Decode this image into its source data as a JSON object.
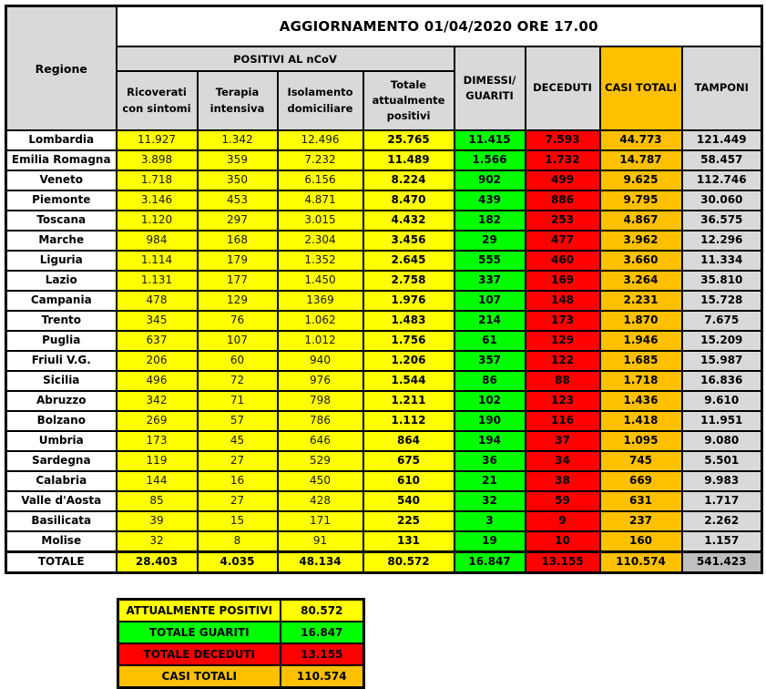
{
  "chart_data": {
    "type": "table",
    "title": "AGGIORNAMENTO 01/04/2020 ORE 17.00",
    "corner_label": "Regione",
    "group_header": "POSITIVI AL nCoV",
    "sub_columns": [
      "Ricoverati con sintomi",
      "Terapia intensiva",
      "Isolamento domiciliare",
      "Totale attualmente positivi"
    ],
    "outer_columns": [
      "DIMESSI/ GUARITI",
      "DECEDUTI",
      "CASI TOTALI",
      "TAMPONI"
    ],
    "rows": [
      {
        "region": "Lombardia",
        "values": [
          "11.927",
          "1.342",
          "12.496",
          "25.765",
          "11.415",
          "7.593",
          "44.773",
          "121.449"
        ]
      },
      {
        "region": "Emilia Romagna",
        "values": [
          "3.898",
          "359",
          "7.232",
          "11.489",
          "1.566",
          "1.732",
          "14.787",
          "58.457"
        ]
      },
      {
        "region": "Veneto",
        "values": [
          "1.718",
          "350",
          "6.156",
          "8.224",
          "902",
          "499",
          "9.625",
          "112.746"
        ]
      },
      {
        "region": "Piemonte",
        "values": [
          "3.146",
          "453",
          "4.871",
          "8.470",
          "439",
          "886",
          "9.795",
          "30.060"
        ]
      },
      {
        "region": "Toscana",
        "values": [
          "1.120",
          "297",
          "3.015",
          "4.432",
          "182",
          "253",
          "4.867",
          "36.575"
        ]
      },
      {
        "region": "Marche",
        "values": [
          "984",
          "168",
          "2.304",
          "3.456",
          "29",
          "477",
          "3.962",
          "12.296"
        ]
      },
      {
        "region": "Liguria",
        "values": [
          "1.114",
          "179",
          "1.352",
          "2.645",
          "555",
          "460",
          "3.660",
          "11.334"
        ]
      },
      {
        "region": "Lazio",
        "values": [
          "1.131",
          "177",
          "1.450",
          "2.758",
          "337",
          "169",
          "3.264",
          "35.810"
        ]
      },
      {
        "region": "Campania",
        "values": [
          "478",
          "129",
          "1369",
          "1.976",
          "107",
          "148",
          "2.231",
          "15.728"
        ]
      },
      {
        "region": "Trento",
        "values": [
          "345",
          "76",
          "1.062",
          "1.483",
          "214",
          "173",
          "1.870",
          "7.675"
        ]
      },
      {
        "region": "Puglia",
        "values": [
          "637",
          "107",
          "1.012",
          "1.756",
          "61",
          "129",
          "1.946",
          "15.209"
        ]
      },
      {
        "region": "Friuli V.G.",
        "values": [
          "206",
          "60",
          "940",
          "1.206",
          "357",
          "122",
          "1.685",
          "15.987"
        ]
      },
      {
        "region": "Sicilia",
        "values": [
          "496",
          "72",
          "976",
          "1.544",
          "86",
          "88",
          "1.718",
          "16.836"
        ]
      },
      {
        "region": "Abruzzo",
        "values": [
          "342",
          "71",
          "798",
          "1.211",
          "102",
          "123",
          "1.436",
          "9.610"
        ]
      },
      {
        "region": "Bolzano",
        "values": [
          "269",
          "57",
          "786",
          "1.112",
          "190",
          "116",
          "1.418",
          "11.951"
        ]
      },
      {
        "region": "Umbria",
        "values": [
          "173",
          "45",
          "646",
          "864",
          "194",
          "37",
          "1.095",
          "9.080"
        ]
      },
      {
        "region": "Sardegna",
        "values": [
          "119",
          "27",
          "529",
          "675",
          "36",
          "34",
          "745",
          "5.501"
        ]
      },
      {
        "region": "Calabria",
        "values": [
          "144",
          "16",
          "450",
          "610",
          "21",
          "38",
          "669",
          "9.983"
        ]
      },
      {
        "region": "Valle d'Aosta",
        "values": [
          "85",
          "27",
          "428",
          "540",
          "32",
          "59",
          "631",
          "1.717"
        ]
      },
      {
        "region": "Basilicata",
        "values": [
          "39",
          "15",
          "171",
          "225",
          "3",
          "9",
          "237",
          "2.262"
        ]
      },
      {
        "region": "Molise",
        "values": [
          "32",
          "8",
          "91",
          "131",
          "19",
          "10",
          "160",
          "1.157"
        ]
      }
    ],
    "total_row": {
      "region": "TOTALE",
      "values": [
        "28.403",
        "4.035",
        "48.134",
        "80.572",
        "16.847",
        "13.155",
        "110.574",
        "541.423"
      ]
    },
    "legend": [
      {
        "label": "ATTUALMENTE POSITIVI",
        "value": "80.572",
        "color": "#FFFF00"
      },
      {
        "label": "TOTALE GUARITI",
        "value": "16.847",
        "color": "#00FF00"
      },
      {
        "label": "TOTALE DECEDUTI",
        "value": "13.155",
        "color": "#FF0000"
      },
      {
        "label": "CASI TOTALI",
        "value": "110.574",
        "color": "#FFC000"
      }
    ],
    "colors": {
      "positivi_yellow": "#FFFF00",
      "guariti_green": "#00FF00",
      "deceduti_red": "#FF0000",
      "casi_totali_orange": "#FFC000",
      "tamponi_gray": "#D9D9D9",
      "header_gray": "#D9D9D9",
      "tamponi_total_gray": "#BFBFBF",
      "border_black": "#000000"
    }
  }
}
